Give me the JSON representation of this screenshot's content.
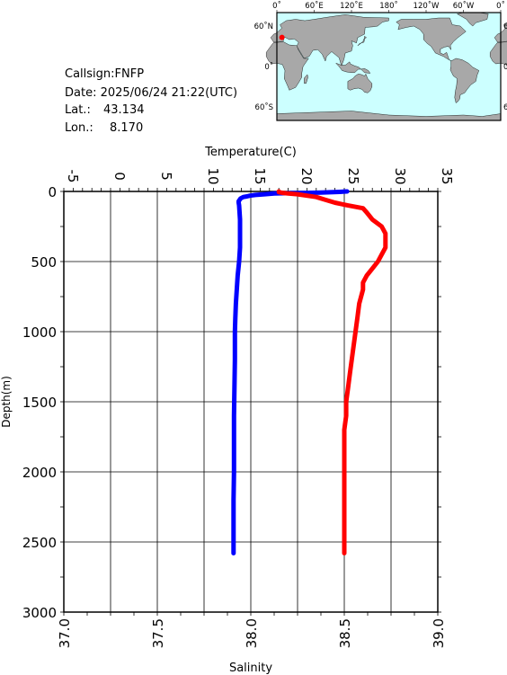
{
  "info": {
    "callsign": "Callsign:FNFP",
    "date": "Date:  2025/06/24 21:22(UTC)",
    "lat_label": "Lat.:",
    "lat_value": "43.134",
    "lon_label": "Lon.:",
    "lon_value": "8.170"
  },
  "map": {
    "lon_labels": [
      "0˚",
      "60˚E",
      "120˚E",
      "180˚",
      "120˚W",
      "60˚W",
      "0˚"
    ],
    "lat_labels": [
      "60˚N",
      "0˚",
      "60˚S"
    ],
    "ocean_color": "#ccffff",
    "land_color": "#a8a8a8",
    "marker_color": "#ff0000",
    "station": {
      "lat": 43.134,
      "lon": 8.17
    }
  },
  "chart_data": {
    "type": "line",
    "y_axis": {
      "label": "Depth(m)",
      "range": [
        0,
        3000
      ],
      "inverted": true,
      "ticks": [
        0,
        500,
        1000,
        1500,
        2000,
        2500,
        3000
      ],
      "tick_labels": [
        "0",
        "500",
        "1000",
        "1500",
        "2000",
        "2500",
        "3000"
      ]
    },
    "x_axis_top": {
      "label": "Temperature(C)",
      "range": [
        -5,
        35
      ],
      "ticks": [
        -5,
        0,
        5,
        10,
        15,
        20,
        25,
        30,
        35
      ],
      "tick_labels": [
        "-5",
        "0",
        "5",
        "10",
        "15",
        "20",
        "25",
        "30",
        "35"
      ]
    },
    "x_axis_bottom": {
      "label": "Salinity",
      "range": [
        37.0,
        39.0
      ],
      "ticks": [
        37.0,
        37.5,
        38.0,
        38.5,
        39.0
      ],
      "tick_labels": [
        "37.0",
        "37.5",
        "38.0",
        "38.5",
        "39.0"
      ]
    },
    "grid": true,
    "series": [
      {
        "axis": "temperature",
        "color": "#0000ff",
        "points": [
          [
            25.3,
            0
          ],
          [
            24.5,
            3
          ],
          [
            23.5,
            6
          ],
          [
            22.5,
            8
          ],
          [
            21.0,
            10
          ],
          [
            19.0,
            12
          ],
          [
            17.5,
            15
          ],
          [
            16.5,
            20
          ],
          [
            15.5,
            25
          ],
          [
            14.9,
            30
          ],
          [
            14.6,
            35
          ],
          [
            14.2,
            40
          ],
          [
            13.9,
            50
          ],
          [
            13.8,
            60
          ],
          [
            13.7,
            70
          ],
          [
            13.7,
            80
          ],
          [
            13.75,
            100
          ],
          [
            13.8,
            150
          ],
          [
            13.85,
            200
          ],
          [
            13.85,
            300
          ],
          [
            13.85,
            400
          ],
          [
            13.75,
            500
          ],
          [
            13.6,
            600
          ],
          [
            13.5,
            700
          ],
          [
            13.4,
            800
          ],
          [
            13.35,
            900
          ],
          [
            13.3,
            1000
          ],
          [
            13.3,
            1200
          ],
          [
            13.25,
            1400
          ],
          [
            13.2,
            1600
          ],
          [
            13.2,
            1800
          ],
          [
            13.2,
            2000
          ],
          [
            13.15,
            2200
          ],
          [
            13.15,
            2400
          ],
          [
            13.15,
            2580
          ]
        ]
      },
      {
        "axis": "salinity",
        "color": "#ff0000",
        "points": [
          [
            38.15,
            0
          ],
          [
            38.15,
            5
          ],
          [
            38.17,
            10
          ],
          [
            38.2,
            15
          ],
          [
            38.25,
            20
          ],
          [
            38.3,
            30
          ],
          [
            38.35,
            40
          ],
          [
            38.4,
            60
          ],
          [
            38.45,
            80
          ],
          [
            38.52,
            100
          ],
          [
            38.6,
            120
          ],
          [
            38.62,
            150
          ],
          [
            38.65,
            200
          ],
          [
            38.7,
            250
          ],
          [
            38.72,
            300
          ],
          [
            38.72,
            350
          ],
          [
            38.72,
            400
          ],
          [
            38.7,
            450
          ],
          [
            38.68,
            500
          ],
          [
            38.65,
            550
          ],
          [
            38.62,
            600
          ],
          [
            38.6,
            650
          ],
          [
            38.6,
            700
          ],
          [
            38.58,
            800
          ],
          [
            38.57,
            900
          ],
          [
            38.56,
            1000
          ],
          [
            38.55,
            1100
          ],
          [
            38.54,
            1200
          ],
          [
            38.53,
            1300
          ],
          [
            38.52,
            1400
          ],
          [
            38.51,
            1500
          ],
          [
            38.51,
            1600
          ],
          [
            38.5,
            1700
          ],
          [
            38.5,
            1800
          ],
          [
            38.5,
            2000
          ],
          [
            38.5,
            2200
          ],
          [
            38.5,
            2400
          ],
          [
            38.5,
            2580
          ]
        ]
      }
    ]
  }
}
